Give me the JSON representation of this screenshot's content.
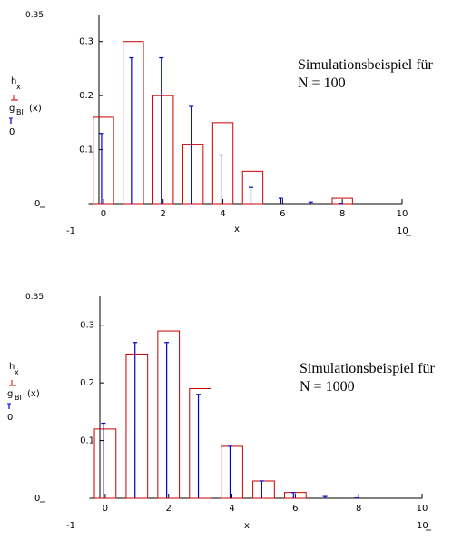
{
  "chart_data": [
    {
      "type": "bar",
      "caption": [
        "Simulationsbeispiel für",
        "N = 100"
      ],
      "legend": {
        "series_a": "h",
        "series_a_sub": "x",
        "series_b": "g",
        "series_b_sub": "BI",
        "series_b_arg": "(x)",
        "extra": "0"
      },
      "xlabel": "x",
      "xlim": [
        -1,
        10
      ],
      "ylim": [
        0,
        0.35
      ],
      "xlim_labels": {
        "min": "-1",
        "max": "10"
      },
      "ylim_labels": {
        "min": "0",
        "max": "0.35"
      },
      "x_ticks": [
        "0",
        "2",
        "4",
        "6",
        "8",
        "10"
      ],
      "y_ticks": [
        "0.1",
        "0.2",
        "0.3"
      ],
      "y_tick_values": [
        0.1,
        0.2,
        0.3
      ],
      "x_tick_values": [
        0,
        2,
        4,
        6,
        8,
        10
      ],
      "series": [
        {
          "name": "h",
          "style": "red-outline-bar",
          "x": [
            0,
            1,
            2,
            3,
            4,
            5,
            6,
            7,
            8
          ],
          "values": [
            0.16,
            0.3,
            0.2,
            0.11,
            0.15,
            0.06,
            0.0,
            0.0,
            0.01
          ]
        },
        {
          "name": "g",
          "style": "blue-stem",
          "x": [
            0,
            1,
            2,
            3,
            4,
            5,
            6,
            7,
            8
          ],
          "values": [
            0.13,
            0.27,
            0.27,
            0.18,
            0.09,
            0.03,
            0.01,
            0.003,
            0.0005
          ]
        }
      ]
    },
    {
      "type": "bar",
      "caption": [
        "Simulationsbeispiel für",
        "N = 1000"
      ],
      "legend": {
        "series_a": "h",
        "series_a_sub": "x",
        "series_b": "g",
        "series_b_sub": "BI",
        "series_b_arg": "(x)",
        "extra": "0"
      },
      "xlabel": "x",
      "xlim": [
        -1,
        10
      ],
      "ylim": [
        0,
        0.35
      ],
      "xlim_labels": {
        "min": "-1",
        "max": "10"
      },
      "ylim_labels": {
        "min": "0",
        "max": "0.35"
      },
      "x_ticks": [
        "0",
        "2",
        "4",
        "6",
        "8",
        "10"
      ],
      "y_ticks": [
        "0.1",
        "0.2",
        "0.3"
      ],
      "y_tick_values": [
        0.1,
        0.2,
        0.3
      ],
      "x_tick_values": [
        0,
        2,
        4,
        6,
        8,
        10
      ],
      "series": [
        {
          "name": "h",
          "style": "red-outline-bar",
          "x": [
            0,
            1,
            2,
            3,
            4,
            5,
            6,
            7,
            8
          ],
          "values": [
            0.12,
            0.25,
            0.29,
            0.19,
            0.09,
            0.03,
            0.01,
            0.0,
            0.0
          ]
        },
        {
          "name": "g",
          "style": "blue-stem",
          "x": [
            0,
            1,
            2,
            3,
            4,
            5,
            6,
            7,
            8
          ],
          "values": [
            0.13,
            0.27,
            0.27,
            0.18,
            0.09,
            0.03,
            0.01,
            0.003,
            0.0005
          ]
        }
      ]
    }
  ],
  "colors": {
    "bar_outline": "#cc0000",
    "stem": "#0000cc",
    "axis": "#000000"
  }
}
